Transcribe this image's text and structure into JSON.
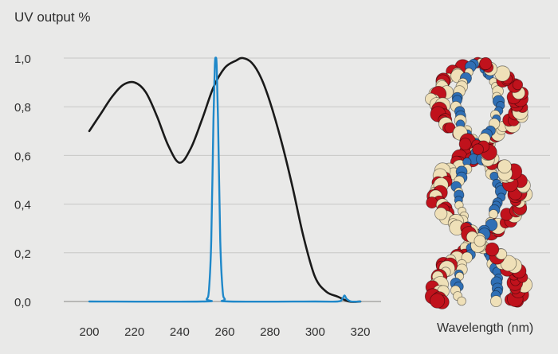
{
  "chart_data": {
    "type": "line",
    "ylabel": "UV output %",
    "xlabel": "Wavelength (nm)",
    "xlim": [
      200,
      320
    ],
    "ylim": [
      0,
      1.0
    ],
    "x_ticks": [
      "200",
      "220",
      "240",
      "260",
      "280",
      "300",
      "320"
    ],
    "x_tick_values": [
      200,
      220,
      240,
      260,
      280,
      300,
      320
    ],
    "y_ticks": [
      "0,0",
      "0,2",
      "0,4",
      "0,6",
      "0,8",
      "1,0"
    ],
    "y_tick_values": [
      0,
      0.2,
      0.4,
      0.6,
      0.8,
      1.0
    ],
    "grid": "horizontal",
    "series": [
      {
        "color": "#1a1a1a",
        "x": [
          200,
          205,
          210,
          215,
          220,
          225,
          230,
          235,
          240,
          245,
          250,
          255,
          260,
          265,
          268,
          272,
          276,
          280,
          285,
          290,
          295,
          300,
          305,
          310,
          315,
          320
        ],
        "y": [
          0.7,
          0.77,
          0.84,
          0.89,
          0.9,
          0.86,
          0.76,
          0.64,
          0.57,
          0.63,
          0.75,
          0.88,
          0.96,
          0.99,
          1.0,
          0.98,
          0.92,
          0.82,
          0.66,
          0.47,
          0.26,
          0.1,
          0.04,
          0.02,
          0.0,
          0.0
        ]
      },
      {
        "color": "#1f88c9",
        "x": [
          200,
          250,
          252,
          253,
          254,
          255,
          255.6,
          256,
          256.4,
          257,
          258,
          259,
          260,
          262,
          300,
          310,
          312,
          313,
          314,
          316,
          320
        ],
        "y": [
          0.0,
          0.0,
          0.01,
          0.05,
          0.25,
          0.75,
          0.97,
          1.0,
          0.97,
          0.75,
          0.25,
          0.05,
          0.01,
          0.0,
          0.0,
          0.0,
          0.01,
          0.025,
          0.01,
          0.0,
          0.0
        ]
      }
    ]
  },
  "colors": {
    "background": "#e9e9e8",
    "grid": "#c8c8c6",
    "axis": "#9a9a98",
    "text": "#2f2f2f",
    "dna_red": "#c0121c",
    "dna_cream": "#efe0b8",
    "dna_blue": "#2f6fb5"
  },
  "decoration": {
    "image": "dna-double-helix-model"
  }
}
